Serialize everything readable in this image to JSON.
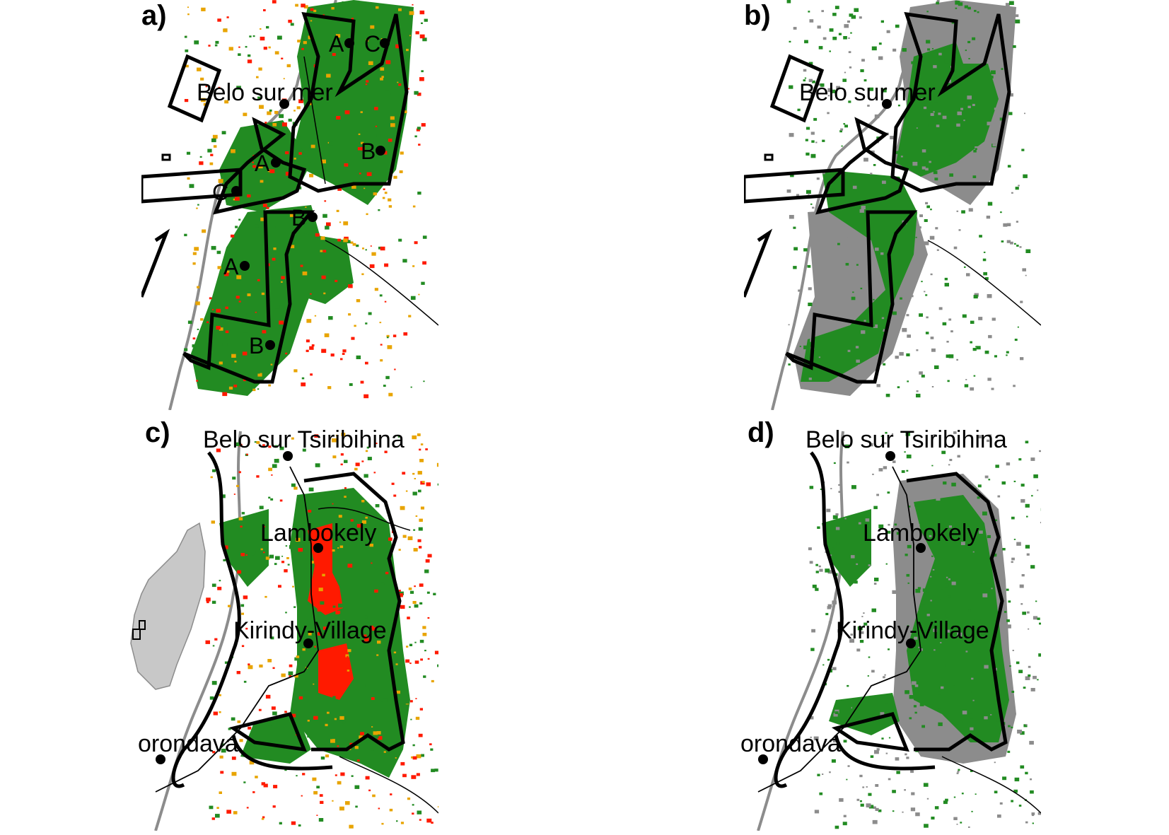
{
  "colors": {
    "forest": "#228B22",
    "loss_recent": "#FF1A00",
    "loss_older": "#E8A400",
    "loss_grey": "#8C8C8C",
    "coast": "#8C8C8C",
    "outline": "#000000",
    "madagascar_fill": "#C8C8C8"
  },
  "panels": {
    "a": {
      "label": "a)"
    },
    "b": {
      "label": "b)"
    },
    "c": {
      "label": "c)"
    },
    "d": {
      "label": "d)"
    }
  },
  "places": {
    "belo_sur_mer": "Belo sur mer",
    "belo_sur_tsiribihina": "Belo sur Tsiribihina",
    "lambokely": "Lambokely",
    "kirindy_village": "Kirindy-Village",
    "morondava": "orondava"
  },
  "sites": {
    "a1": "A",
    "c1": "C",
    "b1": "B",
    "a2": "A",
    "c2": "C",
    "b2": "B",
    "a3": "A",
    "b3": "B"
  }
}
